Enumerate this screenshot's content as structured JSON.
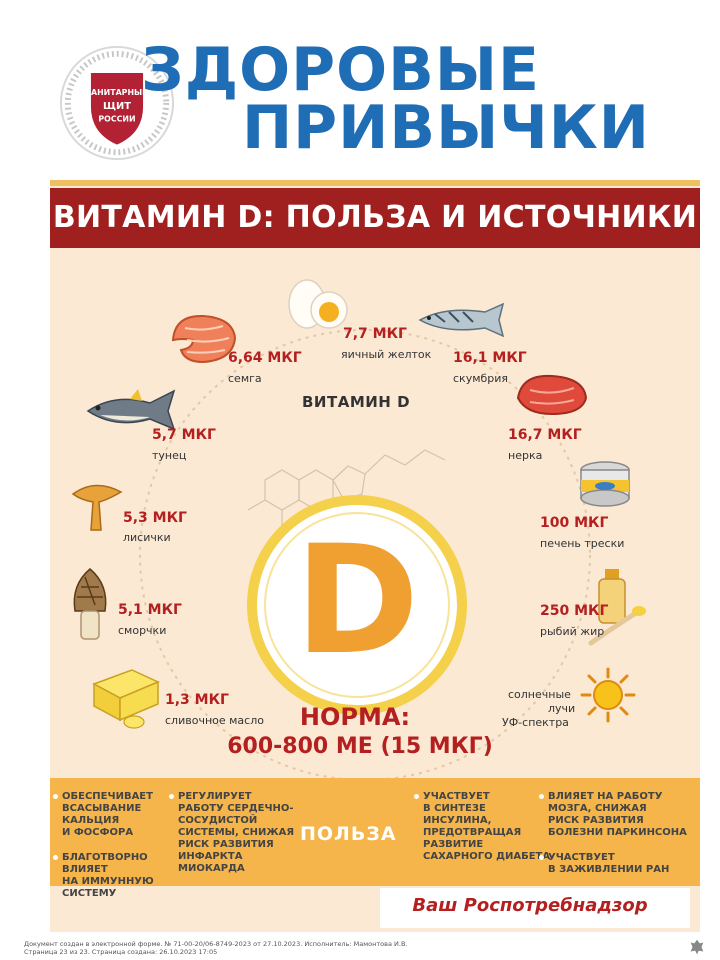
{
  "header": {
    "logo_text": [
      "САНИТАРНЫЙ",
      "ЩИТ",
      "РОССИИ"
    ],
    "title_line1": "ЗДОРОВЫЕ",
    "title_line2": "ПРИВЫЧКИ"
  },
  "banner": {
    "title": "ВИТАМИН D: ПОЛЬЗА И ИСТОЧНИКИ"
  },
  "center": {
    "vitamin_label": "ВИТАМИН D",
    "letter": "D",
    "norm_label": "НОРМА:",
    "norm_value": "600-800 МЕ (15 МКГ)"
  },
  "sources": [
    {
      "amount": "6,64 МКГ",
      "food": "семга"
    },
    {
      "amount": "7,7 МКГ",
      "food": "яичный желток"
    },
    {
      "amount": "16,1 МКГ",
      "food": "скумбрия"
    },
    {
      "amount": "5,7 МКГ",
      "food": "тунец"
    },
    {
      "amount": "16,7 МКГ",
      "food": "нерка"
    },
    {
      "amount": "5,3 МКГ",
      "food": "лисички"
    },
    {
      "amount": "100 МКГ",
      "food": "печень трески"
    },
    {
      "amount": "5,1 МКГ",
      "food": "сморчки"
    },
    {
      "amount": "250 МКГ",
      "food": "рыбий жир"
    },
    {
      "amount": "1,3 МКГ",
      "food": "сливочное масло"
    }
  ],
  "sun": {
    "line1": "солнечные",
    "line2": "лучи",
    "line3": "УФ-спектра"
  },
  "benefits": {
    "heading": "ПОЛЬЗА",
    "items": [
      [
        "ОБЕСПЕЧИВАЕТ",
        "ВСАСЫВАНИЕ",
        "КАЛЬЦИЯ",
        "И ФОСФОРА"
      ],
      [
        "БЛАГОТВОРНО",
        "ВЛИЯЕТ",
        "НА ИММУННУЮ",
        "СИСТЕМУ"
      ],
      [
        "РЕГУЛИРУЕТ",
        "РАБОТУ СЕРДЕЧНО-",
        "СОСУДИСТОЙ",
        "СИСТЕМЫ, СНИЖАЯ",
        "РИСК РАЗВИТИЯ",
        "ИНФАРКТА",
        "МИОКАРДА"
      ],
      [
        "УЧАСТВУЕТ",
        "В СИНТЕЗЕ",
        "ИНСУЛИНА,",
        "ПРЕДОТВРАЩАЯ",
        "РАЗВИТИЕ",
        "САХАРНОГО ДИАБЕТА"
      ],
      [
        "ВЛИЯЕТ НА РАБОТУ",
        "МОЗГА, СНИЖАЯ",
        "РИСК РАЗВИТИЯ",
        "БОЛЕЗНИ ПАРКИНСОНА"
      ],
      [
        "УЧАСТВУЕТ",
        "В ЗАЖИВЛЕНИИ РАН"
      ]
    ]
  },
  "footer": {
    "signature": "Ваш Роспотребнадзор",
    "doc_line1": "Документ создан в электронной форме. № 71-00-20/06-8749-2023 от 27.10.2023. Исполнитель: Мамонтова И.В.",
    "doc_line2": "Страница 23 из 23. Страница создана: 26.10.2023 17:05"
  },
  "colors": {
    "accent_red": "#a01f1f",
    "title_blue": "#1f6db5",
    "benefit_orange": "#f5b54a",
    "poster_bg": "#fbe9d4"
  }
}
